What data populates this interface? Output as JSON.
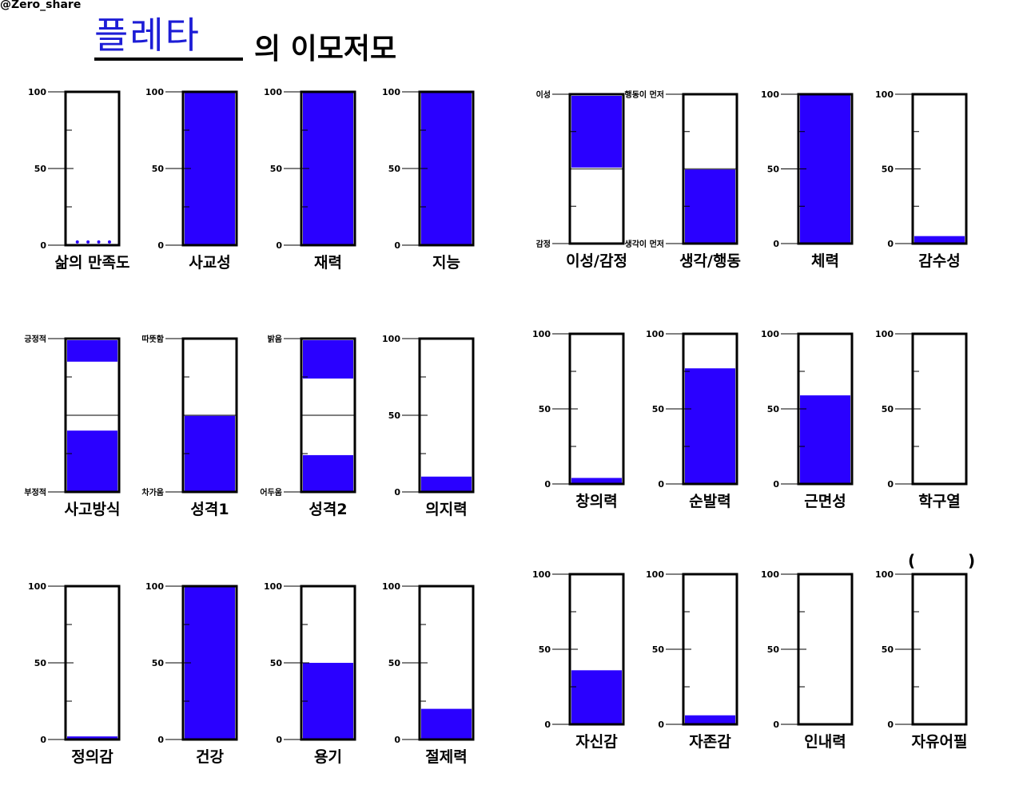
{
  "watermark": "@Zero_share",
  "title": {
    "handwritten": "플레타",
    "rest": "의 이모저모"
  },
  "fill_color": "#2a00ff",
  "gauges": [
    {
      "label": "삶의 만족도",
      "type": "numeric",
      "top_label": "100",
      "mid_label": "50",
      "bottom_label": "0",
      "fill_style": "dots",
      "level": 0.02
    },
    {
      "label": "사교성",
      "type": "numeric",
      "top_label": "100",
      "mid_label": "50",
      "bottom_label": "0",
      "level": 1.0
    },
    {
      "label": "재력",
      "type": "numeric",
      "top_label": "100",
      "mid_label": "50",
      "bottom_label": "0",
      "level": 1.0
    },
    {
      "label": "지능",
      "type": "numeric",
      "top_label": "100",
      "mid_label": "50",
      "bottom_label": "0",
      "level": 1.0
    },
    {
      "label": "사고방식",
      "type": "bipolar",
      "top_label": "긍정적",
      "bottom_label": "부정적",
      "top_level": 0.86,
      "bottom_level": 0.4
    },
    {
      "label": "성격1",
      "type": "bipolar",
      "top_label": "따뜻함",
      "bottom_label": "차가움",
      "top_level": 1.0,
      "bottom_level": 0.5
    },
    {
      "label": "성격2",
      "type": "bipolar",
      "top_label": "밝음",
      "bottom_label": "어두움",
      "top_level": 0.75,
      "bottom_level": 0.24
    },
    {
      "label": "의지력",
      "type": "numeric",
      "top_label": "100",
      "mid_label": "50",
      "bottom_label": "0",
      "level": 0.1
    },
    {
      "label": "정의감",
      "type": "numeric",
      "top_label": "100",
      "mid_label": "50",
      "bottom_label": "0",
      "level": 0.02
    },
    {
      "label": "건강",
      "type": "numeric",
      "top_label": "100",
      "mid_label": "50",
      "bottom_label": "0",
      "level": 1.0
    },
    {
      "label": "용기",
      "type": "numeric",
      "top_label": "100",
      "mid_label": "50",
      "bottom_label": "0",
      "level": 0.5
    },
    {
      "label": "절제력",
      "type": "numeric",
      "top_label": "100",
      "mid_label": "50",
      "bottom_label": "0",
      "level": 0.2
    },
    {
      "label": "이성/감정",
      "type": "bipolar",
      "top_label": "이성",
      "bottom_label": "감정",
      "top_level": 0.52,
      "bottom_level": 0.0
    },
    {
      "label": "생각/행동",
      "type": "bipolar",
      "top_label": "행동이 먼저",
      "bottom_label": "생각이 먼저",
      "top_level": 1.0,
      "bottom_level": 0.5
    },
    {
      "label": "체력",
      "type": "numeric",
      "top_label": "100",
      "mid_label": "50",
      "bottom_label": "0",
      "level": 1.0
    },
    {
      "label": "감수성",
      "type": "numeric",
      "top_label": "100",
      "mid_label": "50",
      "bottom_label": "0",
      "level": 0.05
    },
    {
      "label": "창의력",
      "type": "numeric",
      "top_label": "100",
      "mid_label": "50",
      "bottom_label": "0",
      "level": 0.04
    },
    {
      "label": "순발력",
      "type": "numeric",
      "top_label": "100",
      "mid_label": "50",
      "bottom_label": "0",
      "level": 0.77
    },
    {
      "label": "근면성",
      "type": "numeric",
      "top_label": "100",
      "mid_label": "50",
      "bottom_label": "0",
      "level": 0.59
    },
    {
      "label": "학구열",
      "type": "numeric",
      "top_label": "100",
      "mid_label": "50",
      "bottom_label": "0",
      "level": 0.0
    },
    {
      "label": "자신감",
      "type": "numeric",
      "top_label": "100",
      "mid_label": "50",
      "bottom_label": "0",
      "level": 0.36
    },
    {
      "label": "자존감",
      "type": "numeric",
      "top_label": "100",
      "mid_label": "50",
      "bottom_label": "0",
      "level": 0.06
    },
    {
      "label": "인내력",
      "type": "numeric",
      "top_label": "100",
      "mid_label": "50",
      "bottom_label": "0",
      "level": 0.0
    },
    {
      "label": "자유어필",
      "type": "numeric",
      "top_label": "100",
      "mid_label": "50",
      "bottom_label": "0",
      "level": 0.0,
      "parens": [
        "(",
        ")"
      ]
    }
  ]
}
